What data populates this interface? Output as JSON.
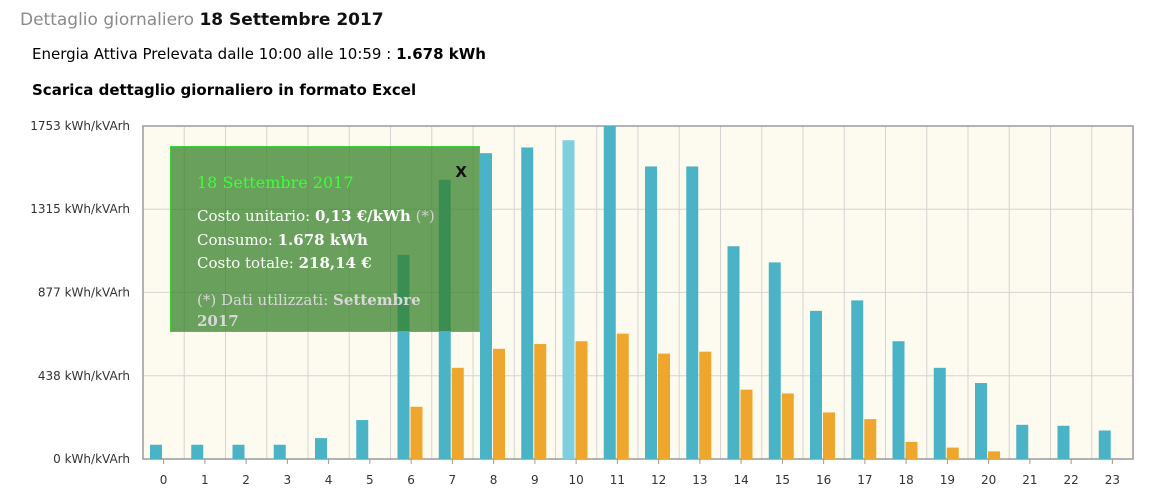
{
  "header": {
    "label": "Dettaglio giornaliero",
    "date": "18 Settembre 2017"
  },
  "energy": {
    "label": "Energia Attiva Prelevata dalle 10:00 alle 10:59 :",
    "value": "1.678 kWh"
  },
  "download_link": "Scarica dettaglio giornaliero in formato Excel",
  "tooltip": {
    "close": "X",
    "date": "18 Settembre 2017",
    "unit_cost_label": "Costo unitario:",
    "unit_cost_value": "0,13 €/kWh",
    "unit_cost_note": "(*)",
    "consumption_label": "Consumo:",
    "consumption_value": "1.678 kWh",
    "total_label": "Costo totale:",
    "total_value": "218,14 €",
    "note_label": "(*) Dati utilizzati:",
    "note_value": "Settembre 2017"
  },
  "colors": {
    "active": "#4ab3c6",
    "highlight": "#7fcfdf",
    "reactive": "#eea62c",
    "plot_bg": "#fdfbf0",
    "grid": "#d4d4d4"
  },
  "chart_data": {
    "type": "bar",
    "categories": [
      "0",
      "1",
      "2",
      "3",
      "4",
      "5",
      "6",
      "7",
      "8",
      "9",
      "10",
      "11",
      "12",
      "13",
      "14",
      "15",
      "16",
      "17",
      "18",
      "19",
      "20",
      "21",
      "22",
      "23"
    ],
    "series": [
      {
        "values": [
          75,
          75,
          75,
          75,
          110,
          205,
          1075,
          1470,
          1610,
          1640,
          1678,
          1753,
          1540,
          1540,
          1120,
          1035,
          780,
          835,
          620,
          480,
          400,
          180,
          175,
          150
        ]
      },
      {
        "values": [
          0,
          0,
          0,
          0,
          0,
          0,
          275,
          480,
          580,
          605,
          620,
          660,
          555,
          565,
          365,
          345,
          245,
          210,
          90,
          60,
          40,
          0,
          0,
          0
        ]
      }
    ],
    "highlight_category": "10",
    "yticks": [
      {
        "value": 0,
        "label": "0 kWh/kVArh"
      },
      {
        "value": 438,
        "label": "438 kWh/kVArh"
      },
      {
        "value": 877,
        "label": "877 kWh/kVArh"
      },
      {
        "value": 1315,
        "label": "1315 kWh/kVArh"
      },
      {
        "value": 1753,
        "label": "1753 kWh/kVArh"
      }
    ],
    "ylim": [
      0,
      1753
    ],
    "grid": true,
    "xlabel": "",
    "ylabel": ""
  }
}
